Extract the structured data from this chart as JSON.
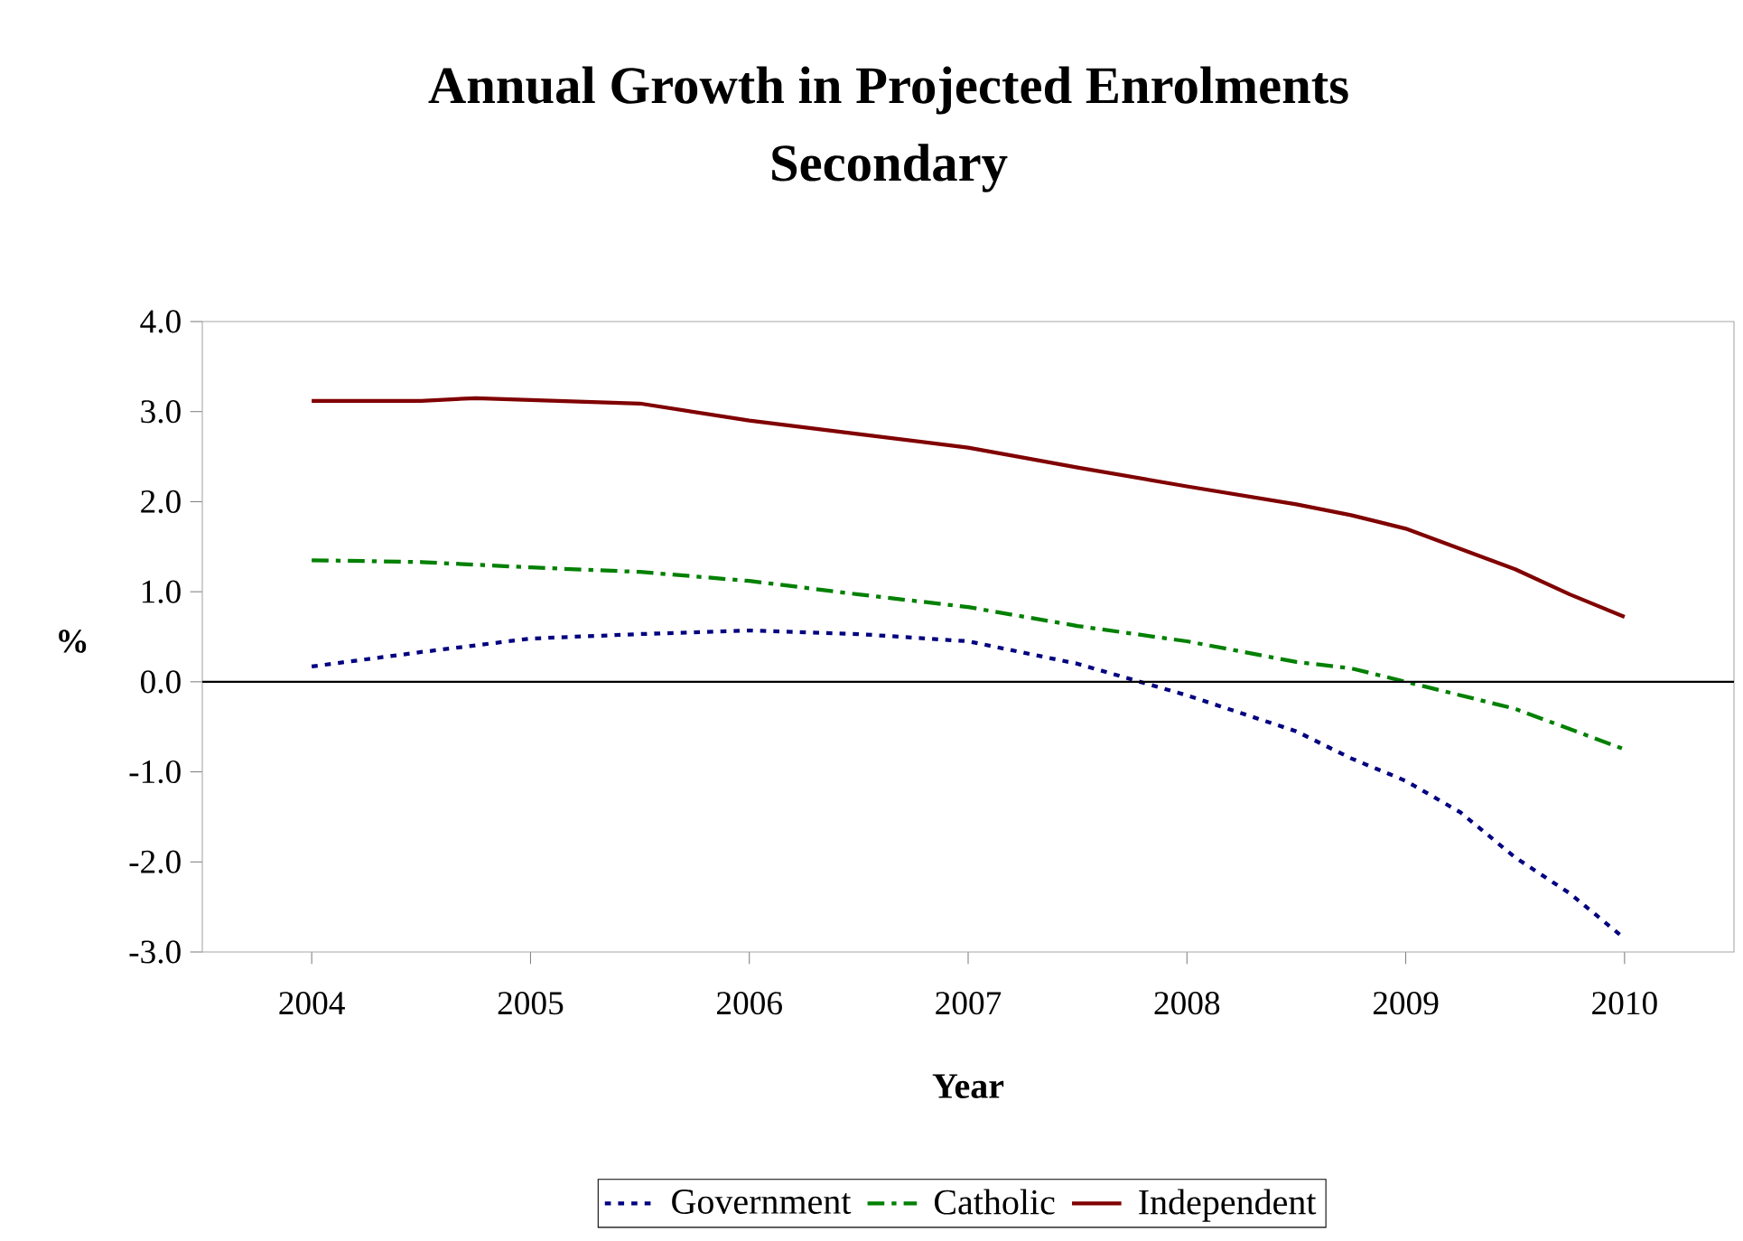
{
  "chart_data": {
    "type": "line",
    "title": "Annual Growth in Projected Enrolments",
    "subtitle": "Secondary",
    "xlabel": "Year",
    "ylabel": "%",
    "xlim": [
      2003.5,
      2010.5
    ],
    "xticks": [
      2004,
      2005,
      2006,
      2007,
      2008,
      2009,
      2010
    ],
    "ylim": [
      -3,
      4
    ],
    "yticks": [
      {
        "value": -3,
        "label": "-3.0"
      },
      {
        "value": -2,
        "label": "-2.0"
      },
      {
        "value": -1,
        "label": "-1.0"
      },
      {
        "value": 0,
        "label": "0.0"
      },
      {
        "value": 1,
        "label": "1.0"
      },
      {
        "value": 2,
        "label": "2.0"
      },
      {
        "value": 3,
        "label": "3.0"
      },
      {
        "value": 4,
        "label": "4.0"
      }
    ],
    "ref_lines": [
      {
        "axis": "y",
        "value": 0,
        "color": "#000000"
      }
    ],
    "legend": "bottom",
    "grid": false,
    "marker": "none",
    "series": [
      {
        "name": "Government",
        "color": "#000080",
        "line_style": "dotted",
        "x": [
          2004,
          2004.5,
          2005,
          2005.5,
          2006,
          2006.5,
          2007,
          2007.5,
          2008,
          2008.5,
          2008.75,
          2009,
          2009.25,
          2009.5,
          2009.75,
          2010
        ],
        "values": [
          0.17,
          0.33,
          0.48,
          0.53,
          0.57,
          0.53,
          0.45,
          0.2,
          -0.15,
          -0.55,
          -0.85,
          -1.1,
          -1.45,
          -1.95,
          -2.35,
          -2.85
        ]
      },
      {
        "name": "Catholic",
        "color": "#008000",
        "line_style": "dashed",
        "x": [
          2004,
          2004.5,
          2005,
          2005.5,
          2006,
          2006.5,
          2007,
          2007.5,
          2008,
          2008.5,
          2008.75,
          2009,
          2009.5,
          2010
        ],
        "values": [
          1.35,
          1.33,
          1.27,
          1.22,
          1.12,
          0.97,
          0.83,
          0.62,
          0.45,
          0.22,
          0.15,
          0.0,
          -0.3,
          -0.75
        ]
      },
      {
        "name": "Independent",
        "color": "#800000",
        "line_style": "solid",
        "x": [
          2004,
          2004.5,
          2004.75,
          2005,
          2005.5,
          2006,
          2006.5,
          2007,
          2007.5,
          2008,
          2008.5,
          2008.75,
          2009,
          2009.5,
          2009.75,
          2010
        ],
        "values": [
          3.12,
          3.12,
          3.15,
          3.13,
          3.09,
          2.9,
          2.75,
          2.6,
          2.38,
          2.17,
          1.97,
          1.85,
          1.7,
          1.25,
          0.97,
          0.72
        ]
      }
    ]
  }
}
